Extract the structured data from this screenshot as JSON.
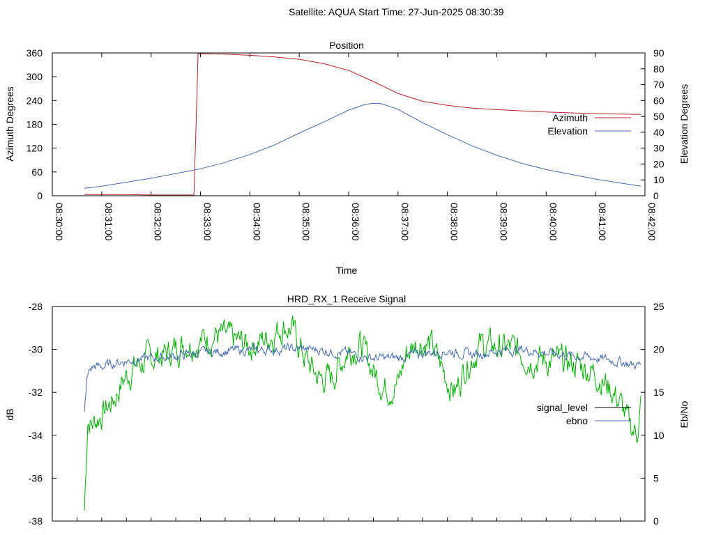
{
  "header": {
    "satellite": "Satellite: AQUA",
    "start_time": "Start Time: 27-Jun-2025 08:30:39"
  },
  "colors": {
    "azimuth": "#b22222",
    "elevation": "#4169b0",
    "signal_level": "#00b000",
    "ebno": "#4169b0",
    "legend_signal_level_sample": "#000000"
  },
  "chart_data": [
    {
      "type": "line",
      "title": "Position",
      "xlabel": "Time",
      "ylabel": "Azimuth Degrees",
      "y2label": "Elevation Degrees",
      "xlim": [
        "08:30:00",
        "08:42:00"
      ],
      "x_ticks": [
        "08:30:00",
        "08:31:00",
        "08:32:00",
        "08:33:00",
        "08:34:00",
        "08:35:00",
        "08:36:00",
        "08:37:00",
        "08:38:00",
        "08:39:00",
        "08:40:00",
        "08:41:00",
        "08:42:00"
      ],
      "ylim": [
        0,
        360
      ],
      "y_ticks": [
        0,
        60,
        120,
        180,
        240,
        300,
        360
      ],
      "y2lim": [
        0,
        90
      ],
      "y2_ticks": [
        0,
        10,
        20,
        30,
        40,
        50,
        60,
        70,
        80,
        90
      ],
      "legend_position": "right",
      "series": [
        {
          "name": "Azimuth",
          "axis": "y",
          "x": [
            "08:30:39",
            "08:31:00",
            "08:31:30",
            "08:32:00",
            "08:32:30",
            "08:32:50",
            "08:32:52",
            "08:32:55",
            "08:32:57",
            "08:33:00",
            "08:33:30",
            "08:34:00",
            "08:34:30",
            "08:35:00",
            "08:35:30",
            "08:36:00",
            "08:36:30",
            "08:37:00",
            "08:37:30",
            "08:38:00",
            "08:38:30",
            "08:39:00",
            "08:39:30",
            "08:40:00",
            "08:40:30",
            "08:41:00",
            "08:41:30",
            "08:41:55"
          ],
          "values": [
            3,
            3,
            3,
            2,
            2,
            2,
            2,
            200,
            358,
            358,
            357,
            354,
            350,
            344,
            333,
            316,
            288,
            258,
            238,
            228,
            221,
            217,
            214,
            211,
            209,
            207,
            206,
            205
          ]
        },
        {
          "name": "Elevation",
          "axis": "y2",
          "x": [
            "08:30:39",
            "08:31:00",
            "08:31:30",
            "08:32:00",
            "08:32:30",
            "08:33:00",
            "08:33:30",
            "08:34:00",
            "08:34:30",
            "08:35:00",
            "08:35:30",
            "08:36:00",
            "08:36:20",
            "08:36:30",
            "08:36:40",
            "08:37:00",
            "08:37:30",
            "08:38:00",
            "08:38:30",
            "08:39:00",
            "08:39:30",
            "08:40:00",
            "08:40:30",
            "08:41:00",
            "08:41:30",
            "08:41:55"
          ],
          "values": [
            4.7,
            6,
            8.5,
            11,
            14,
            17,
            21,
            26,
            32,
            39.5,
            46.5,
            54,
            57.5,
            58.3,
            58,
            54.5,
            46,
            38.5,
            31.5,
            25.5,
            20.5,
            16.5,
            13.5,
            10.5,
            8,
            6
          ]
        }
      ]
    },
    {
      "type": "line",
      "title": "HRD_RX_1 Receive Signal",
      "ylabel": "dB",
      "y2label": "Eb/No",
      "xlim": [
        "08:30:00",
        "08:42:00"
      ],
      "ylim": [
        -38,
        -28
      ],
      "y_ticks": [
        -38,
        -36,
        -34,
        -32,
        -30,
        -28
      ],
      "y2lim": [
        0,
        25
      ],
      "y2_ticks": [
        0,
        5,
        10,
        15,
        20,
        25
      ],
      "legend_position": "right",
      "series": [
        {
          "name": "signal_level",
          "axis": "y",
          "x": [
            "08:30:39",
            "08:30:43",
            "08:30:48",
            "08:30:55",
            "08:31:05",
            "08:31:15",
            "08:31:25",
            "08:31:40",
            "08:32:00",
            "08:32:20",
            "08:32:40",
            "08:33:00",
            "08:33:20",
            "08:33:40",
            "08:34:00",
            "08:34:20",
            "08:34:40",
            "08:34:50",
            "08:35:00",
            "08:35:10",
            "08:35:25",
            "08:35:40",
            "08:36:00",
            "08:36:15",
            "08:36:30",
            "08:36:45",
            "08:37:00",
            "08:37:10",
            "08:37:25",
            "08:37:40",
            "08:37:50",
            "08:38:00",
            "08:38:10",
            "08:38:20",
            "08:38:40",
            "08:39:00",
            "08:39:20",
            "08:39:40",
            "08:40:00",
            "08:40:20",
            "08:40:40",
            "08:41:00",
            "08:41:20",
            "08:41:30",
            "08:41:40",
            "08:41:50",
            "08:41:55"
          ],
          "values": [
            -37.5,
            -33.2,
            -33.5,
            -33.2,
            -32.8,
            -32.3,
            -31.5,
            -30.8,
            -30.4,
            -30.2,
            -29.7,
            -29.6,
            -29.3,
            -29.6,
            -29.8,
            -29.5,
            -28.9,
            -29.0,
            -29.8,
            -30.6,
            -31.4,
            -31.3,
            -30.0,
            -29.8,
            -31.0,
            -31.8,
            -31.6,
            -30.2,
            -29.6,
            -29.8,
            -30.6,
            -31.4,
            -32.0,
            -30.9,
            -29.8,
            -29.9,
            -30.0,
            -30.4,
            -30.5,
            -30.6,
            -30.7,
            -31.1,
            -31.9,
            -32.5,
            -33.5,
            -33.9,
            -32.5
          ]
        },
        {
          "name": "ebno",
          "axis": "y2",
          "x": [
            "08:30:39",
            "08:30:42",
            "08:30:45",
            "08:30:50",
            "08:31:00",
            "08:31:20",
            "08:31:40",
            "08:32:00",
            "08:32:30",
            "08:33:00",
            "08:33:30",
            "08:34:00",
            "08:34:30",
            "08:35:00",
            "08:35:30",
            "08:36:00",
            "08:36:30",
            "08:37:00",
            "08:37:30",
            "08:38:00",
            "08:38:30",
            "08:39:00",
            "08:39:30",
            "08:40:00",
            "08:40:30",
            "08:41:00",
            "08:41:30",
            "08:41:45",
            "08:41:55"
          ],
          "values": [
            12.5,
            16.5,
            17.5,
            18,
            18,
            18.5,
            18.8,
            19,
            19.2,
            19.6,
            19.8,
            19.9,
            20,
            20.1,
            19.9,
            19.5,
            19,
            19,
            19.6,
            19.8,
            19.4,
            19.8,
            20,
            19.6,
            19.3,
            19,
            18.6,
            18.2,
            18.2
          ]
        }
      ]
    }
  ]
}
